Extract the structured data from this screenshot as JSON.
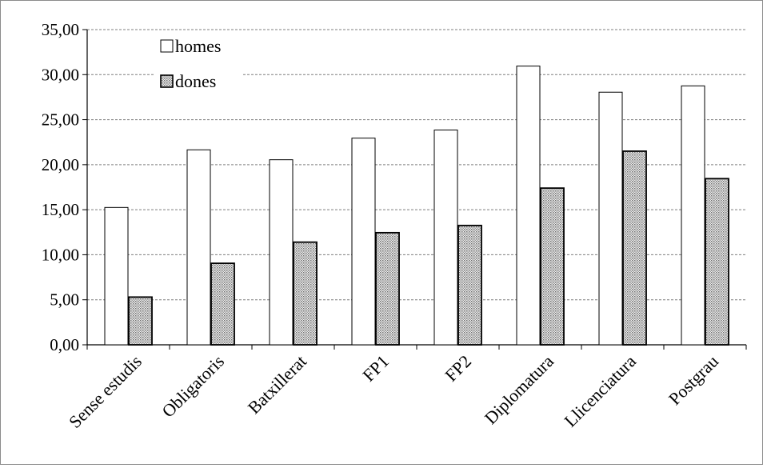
{
  "chart_data": {
    "type": "bar",
    "title": "",
    "xlabel": "",
    "ylabel": "",
    "categories": [
      "Sense estudis",
      "Obligatoris",
      "Batxillerat",
      "FP1",
      "FP2",
      "Diplomatura",
      "Llicenciatura",
      "Postgrau"
    ],
    "series": [
      {
        "name": "homes",
        "values": [
          15.25,
          21.65,
          20.55,
          22.95,
          23.85,
          30.95,
          28.05,
          28.75
        ]
      },
      {
        "name": "dones",
        "values": [
          5.3,
          9.05,
          11.4,
          12.45,
          13.25,
          17.4,
          21.5,
          18.45
        ]
      }
    ],
    "ylim": [
      0,
      35
    ],
    "yticks": [
      "0,00",
      "5,00",
      "10,00",
      "15,00",
      "20,00",
      "25,00",
      "30,00",
      "35,00"
    ],
    "grid": true,
    "gridlines": "horizontal dashed",
    "legend_position": "top-left",
    "colors": {
      "homes": "#ffffff",
      "dones": "#c8c8c8",
      "border": "#000000",
      "grid": "#7f7f7f"
    }
  }
}
